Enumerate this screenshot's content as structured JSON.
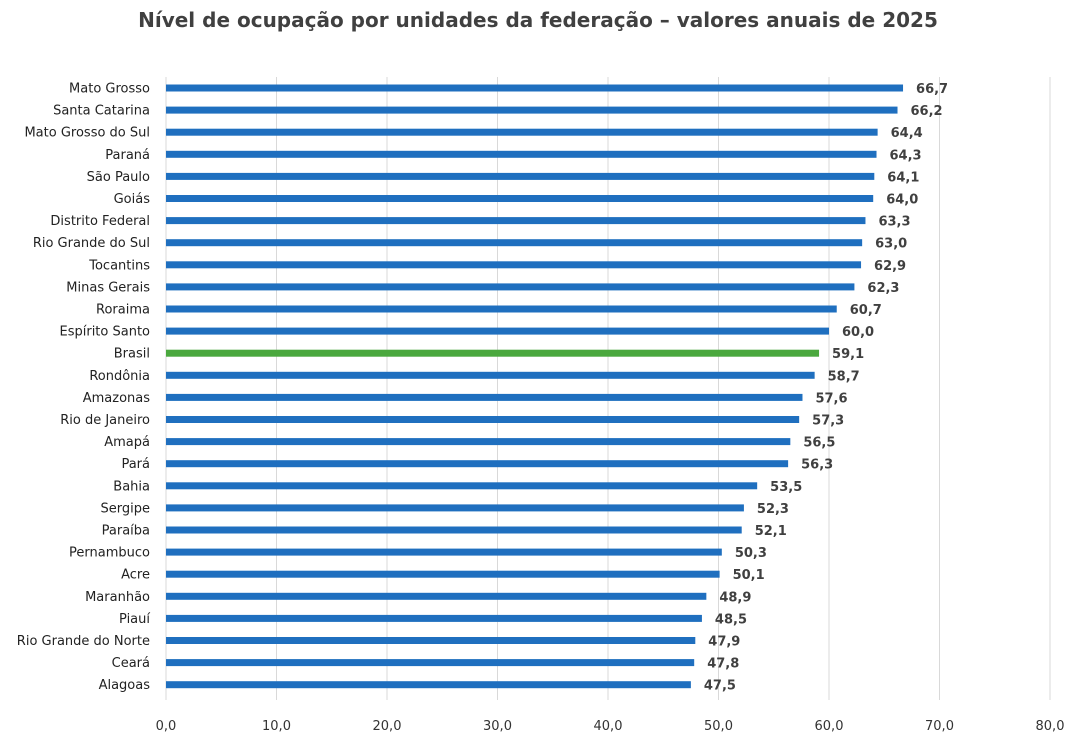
{
  "colors": {
    "bar": "#1f6fbf",
    "highlight": "#4aa83e",
    "grid": "#d9d9d9"
  },
  "chart_data": {
    "type": "bar",
    "orientation": "horizontal",
    "title": "Nível de ocupação por unidades da federação – valores anuais de 2025",
    "xlabel": "",
    "ylabel": "",
    "xlim": [
      0,
      80
    ],
    "grid": true,
    "highlight": "Brasil",
    "categories": [
      "Mato Grosso",
      "Santa Catarina",
      "Mato Grosso do Sul",
      "Paraná",
      "São Paulo",
      "Goiás",
      "Distrito Federal",
      "Rio Grande do Sul",
      "Tocantins",
      "Minas Gerais",
      "Roraima",
      "Espírito Santo",
      "Brasil",
      "Rondônia",
      "Amazonas",
      "Rio de Janeiro",
      "Amapá",
      "Pará",
      "Bahia",
      "Sergipe",
      "Paraíba",
      "Pernambuco",
      "Acre",
      "Maranhão",
      "Piauí",
      "Rio Grande do Norte",
      "Ceará",
      "Alagoas"
    ],
    "values": [
      66.7,
      66.2,
      64.4,
      64.3,
      64.1,
      64.0,
      63.3,
      63.0,
      62.9,
      62.3,
      60.7,
      60.0,
      59.1,
      58.7,
      57.6,
      57.3,
      56.5,
      56.3,
      53.5,
      52.3,
      52.1,
      50.3,
      50.1,
      48.9,
      48.5,
      47.9,
      47.8,
      47.5
    ],
    "value_labels": [
      "66,7",
      "66,2",
      "64,4",
      "64,3",
      "64,1",
      "64,0",
      "63,3",
      "63,0",
      "62,9",
      "62,3",
      "60,7",
      "60,0",
      "59,1",
      "58,7",
      "57,6",
      "57,3",
      "56,5",
      "56,3",
      "53,5",
      "52,3",
      "52,1",
      "50,3",
      "50,1",
      "48,9",
      "48,5",
      "47,9",
      "47,8",
      "47,5"
    ],
    "x_ticks": [
      0,
      10,
      20,
      30,
      40,
      50,
      60,
      70,
      80
    ],
    "x_tick_labels": [
      "0,0",
      "10,0",
      "20,0",
      "30,0",
      "40,0",
      "50,0",
      "60,0",
      "70,0",
      "80,0"
    ]
  }
}
